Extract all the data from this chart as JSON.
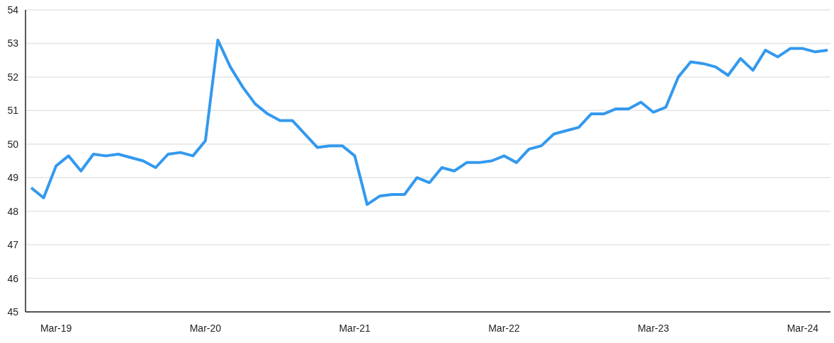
{
  "chart_data": {
    "type": "line",
    "categories": [
      null,
      null,
      "Mar-19",
      null,
      null,
      null,
      null,
      null,
      null,
      null,
      null,
      null,
      null,
      null,
      "Mar-20",
      null,
      null,
      null,
      null,
      null,
      null,
      null,
      null,
      null,
      null,
      null,
      "Mar-21",
      null,
      null,
      null,
      null,
      null,
      null,
      null,
      null,
      null,
      null,
      null,
      "Mar-22",
      null,
      null,
      null,
      null,
      null,
      null,
      null,
      null,
      null,
      null,
      null,
      "Mar-23",
      null,
      null,
      null,
      null,
      null,
      null,
      null,
      null,
      null,
      null,
      null,
      "Mar-24",
      null,
      null
    ],
    "series": [
      {
        "color": "#3399ee",
        "values": [
          48.7,
          48.4,
          49.35,
          49.65,
          49.2,
          49.7,
          49.65,
          49.7,
          49.6,
          49.5,
          49.3,
          49.7,
          49.75,
          49.65,
          50.1,
          53.1,
          52.3,
          51.7,
          51.2,
          50.9,
          50.7,
          50.7,
          50.3,
          49.9,
          49.95,
          49.95,
          49.65,
          48.2,
          48.45,
          48.5,
          48.5,
          49.0,
          48.85,
          49.3,
          49.2,
          49.45,
          49.45,
          49.5,
          49.65,
          49.45,
          49.85,
          49.95,
          50.3,
          50.4,
          50.5,
          50.9,
          50.9,
          51.05,
          51.05,
          51.25,
          50.95,
          51.1,
          52.0,
          52.45,
          52.4,
          52.3,
          52.05,
          52.55,
          52.2,
          52.8,
          52.6,
          52.85,
          52.85,
          52.75,
          52.8
        ]
      }
    ],
    "ylim": [
      45,
      54
    ],
    "yticks": [
      45,
      46,
      47,
      48,
      49,
      50,
      51,
      52,
      53,
      54
    ],
    "grid": "y",
    "legend": false,
    "marker": "none",
    "line_style": "solid"
  }
}
